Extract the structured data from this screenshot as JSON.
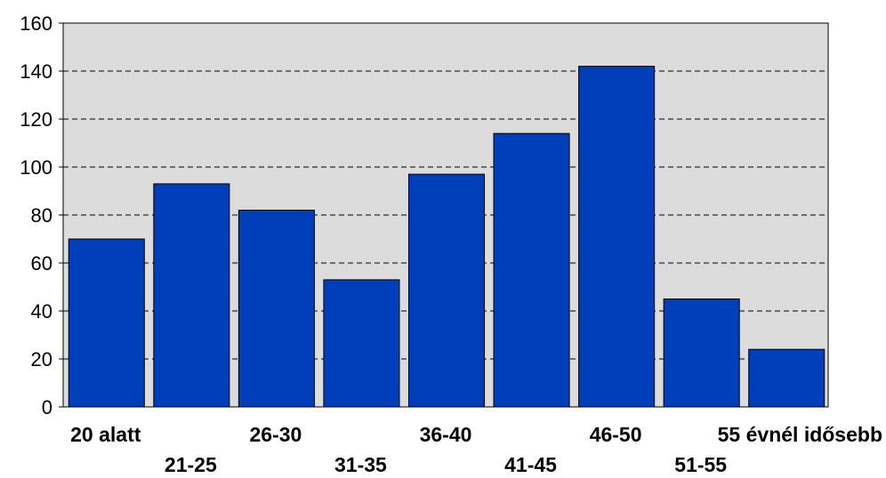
{
  "chart_data": {
    "type": "bar",
    "title": "",
    "xlabel": "",
    "ylabel": "",
    "categories": [
      "20 alatt",
      "21-25",
      "26-30",
      "31-35",
      "36-40",
      "41-45",
      "46-50",
      "51-55",
      "55 évnél idősebb"
    ],
    "values": [
      70,
      93,
      82,
      53,
      97,
      114,
      142,
      45,
      24
    ],
    "ylim": [
      0,
      160
    ],
    "yticks": [
      0,
      20,
      40,
      60,
      80,
      100,
      120,
      140,
      160
    ],
    "grid": true,
    "grid_style": "dashed",
    "legend": "none",
    "colors": {
      "bar": "#003EBA",
      "plot_background": "#DCDCDC",
      "grid": "#000000",
      "text": "#000000"
    }
  }
}
